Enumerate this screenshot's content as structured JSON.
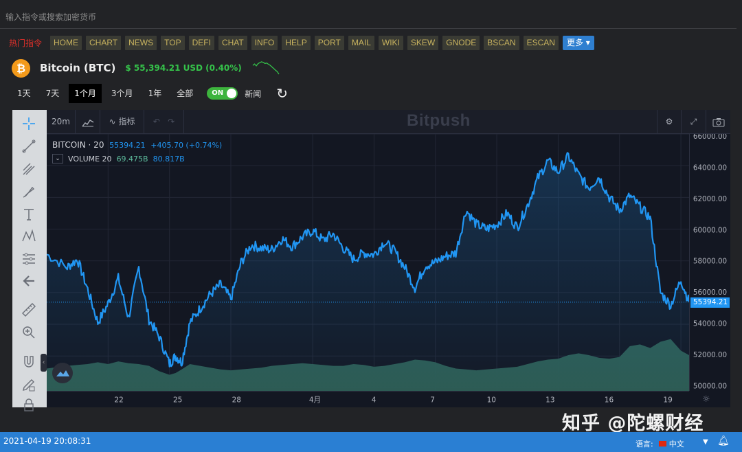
{
  "search": {
    "placeholder": "输入指令或搜索加密货币"
  },
  "commands": {
    "hot_label": "热门指令",
    "items": [
      "HOME",
      "CHART",
      "NEWS",
      "TOP",
      "DEFI",
      "CHAT",
      "INFO",
      "HELP",
      "PORT",
      "MAIL",
      "WIKI",
      "SKEW",
      "GNODE",
      "BSCAN",
      "ESCAN"
    ],
    "more_label": "更多 ▾"
  },
  "coin": {
    "logo_glyph": "₿",
    "name": "Bitcoin (BTC)",
    "price": "$ 55,394.21 USD (0.40%)",
    "price_color": "#35c24a",
    "sparkline": [
      61800,
      62900,
      61500,
      63200,
      63900,
      64500,
      64100,
      63300,
      63600,
      62700,
      61900,
      60700,
      59600,
      58400,
      57300,
      55400
    ]
  },
  "ranges": {
    "items": [
      "1天",
      "7天",
      "1个月",
      "3个月",
      "1年",
      "全部"
    ],
    "active": "1个月",
    "toggle_label": "ON",
    "news_label": "新闻"
  },
  "chart_toolbar": {
    "interval": "20m",
    "indicators_label": "指标",
    "brand": "Bitpush"
  },
  "legend": {
    "symbol": "BITCOIN · 20",
    "price": "55394.21",
    "change": "+405.70 (+0.74%)",
    "volume_label": "VOLUME 20",
    "volume_a": "69.475B",
    "volume_b": "80.817B",
    "price_color": "#2196f3",
    "vol_a_color": "#5fbf9f",
    "vol_b_color": "#2196f3"
  },
  "last_price_tag": "55394.21",
  "chart_data": {
    "type": "line",
    "title": "",
    "xlabel": "",
    "ylabel": "",
    "ylim": [
      49800,
      66000
    ],
    "yticks": [
      "66000.00",
      "64000.00",
      "62000.00",
      "60000.00",
      "58000.00",
      "56000.00",
      "54000.00",
      "52000.00",
      "50000.00"
    ],
    "ytick_values": [
      66000,
      64000,
      62000,
      60000,
      58000,
      56000,
      54000,
      52000,
      50000
    ],
    "xticks": [
      "22",
      "25",
      "28",
      "4月",
      "4",
      "7",
      "10",
      "13",
      "16",
      "19"
    ],
    "xtick_days": [
      3,
      6,
      9,
      13,
      16,
      19,
      22,
      25,
      28,
      31
    ],
    "x_start_label": "2021-03-19",
    "x": [
      0,
      1,
      1.5,
      2,
      2.5,
      3,
      3.5,
      4,
      4.5,
      5,
      5.5,
      6,
      6.3,
      6.6,
      7,
      7.5,
      8,
      8.5,
      9,
      9.5,
      10,
      10.5,
      11,
      11.5,
      12,
      12.5,
      13,
      13.5,
      14,
      14.5,
      15,
      15.5,
      16,
      16.5,
      17,
      17.5,
      18,
      18.5,
      19,
      19.5,
      20,
      20.5,
      21,
      21.5,
      22,
      22.5,
      23,
      23.5,
      24,
      24.5,
      25,
      25.5,
      26,
      26.5,
      27,
      27.5,
      28,
      28.5,
      29,
      29.5,
      30,
      30.5,
      31,
      31.4
    ],
    "series": [
      {
        "values": [
          58400,
          57600,
          58100,
          56200,
          54100,
          55300,
          56900,
          54400,
          57600,
          54300,
          53200,
          51500,
          52000,
          51600,
          54100,
          55000,
          55900,
          56500,
          55600,
          57900,
          59000,
          58800,
          58700,
          59400,
          58900,
          59500,
          59900,
          59300,
          59700,
          58800,
          58100,
          58500,
          58400,
          59200,
          58600,
          57600,
          56300,
          57700,
          57900,
          58300,
          58500,
          61200,
          60300,
          60000,
          60300,
          61000,
          60100,
          61500,
          63200,
          64300,
          63600,
          64600,
          63400,
          62600,
          63300,
          62000,
          61200,
          62100,
          61400,
          60700,
          56000,
          55200,
          56800,
          55400
        ]
      }
    ],
    "volume_note": "relative volume 0-1",
    "volume": [
      0.25,
      0.28,
      0.29,
      0.3,
      0.32,
      0.3,
      0.33,
      0.31,
      0.3,
      0.28,
      0.22,
      0.18,
      0.2,
      0.24,
      0.3,
      0.28,
      0.26,
      0.24,
      0.23,
      0.24,
      0.25,
      0.26,
      0.28,
      0.29,
      0.3,
      0.31,
      0.3,
      0.29,
      0.28,
      0.28,
      0.3,
      0.29,
      0.27,
      0.28,
      0.3,
      0.32,
      0.35,
      0.34,
      0.32,
      0.28,
      0.25,
      0.24,
      0.23,
      0.24,
      0.25,
      0.26,
      0.27,
      0.3,
      0.33,
      0.35,
      0.36,
      0.4,
      0.42,
      0.4,
      0.37,
      0.36,
      0.38,
      0.5,
      0.52,
      0.48,
      0.55,
      0.58,
      0.45,
      0.4
    ],
    "line_color": "#2196f3",
    "volume_color": "#2e5e54"
  },
  "watermark": "知乎 @陀螺财经",
  "status": {
    "timestamp": "2021-04-19 20:08:31",
    "lang_label": "语言:",
    "lang_value": "中文"
  }
}
